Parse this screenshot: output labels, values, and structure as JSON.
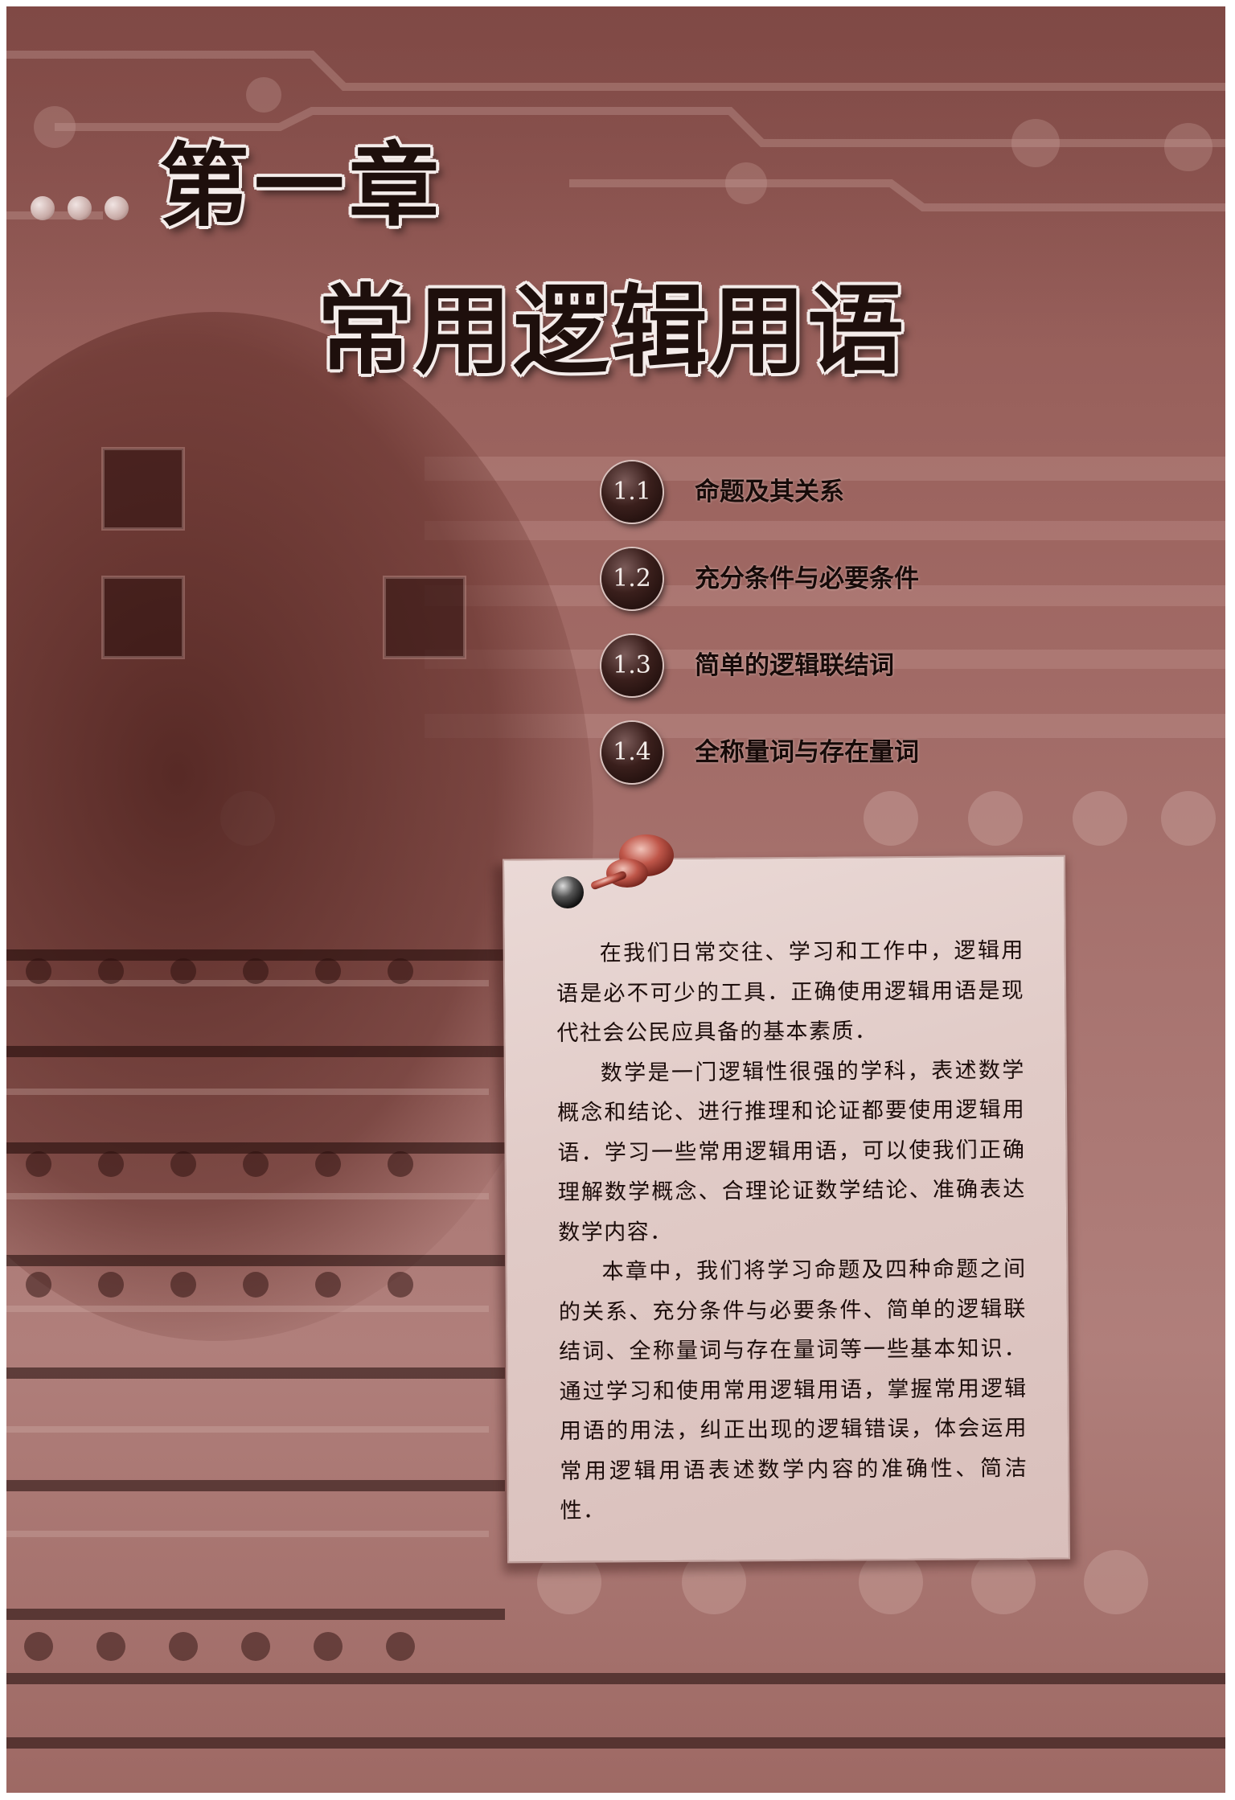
{
  "chapter": {
    "number_title": "第一章",
    "title": "常用逻辑用语"
  },
  "toc": {
    "items": [
      {
        "number": "1.1",
        "label": "命题及其关系"
      },
      {
        "number": "1.2",
        "label": "充分条件与必要条件"
      },
      {
        "number": "1.3",
        "label": "简单的逻辑联结词"
      },
      {
        "number": "1.4",
        "label": "全称量词与存在量词"
      }
    ]
  },
  "note": {
    "paragraphs": [
      "在我们日常交往、学习和工作中，逻辑用语是必不可少的工具．正确使用逻辑用语是现代社会公民应具备的基本素质．",
      "数学是一门逻辑性很强的学科，表述数学概念和结论、进行推理和论证都要使用逻辑用语．学习一些常用逻辑用语，可以使我们正确理解数学概念、合理论证数学结论、准确表达数学内容．",
      "本章中，我们将学习命题及四种命题之间的关系、充分条件与必要条件、简单的逻辑联结词、全称量词与存在量词等一些基本知识．通过学习和使用常用逻辑用语，掌握常用逻辑用语的用法，纠正出现的逻辑错误，体会运用常用逻辑用语表述数学内容的准确性、简洁性．"
    ]
  },
  "colors": {
    "background": "#9e6661",
    "note_paper": "#e1cbc7",
    "title_text": "#1e0f0c",
    "badge": "#2a1412"
  },
  "icons": {
    "pin": "push-pin-icon",
    "dots": "decorative-dots"
  }
}
